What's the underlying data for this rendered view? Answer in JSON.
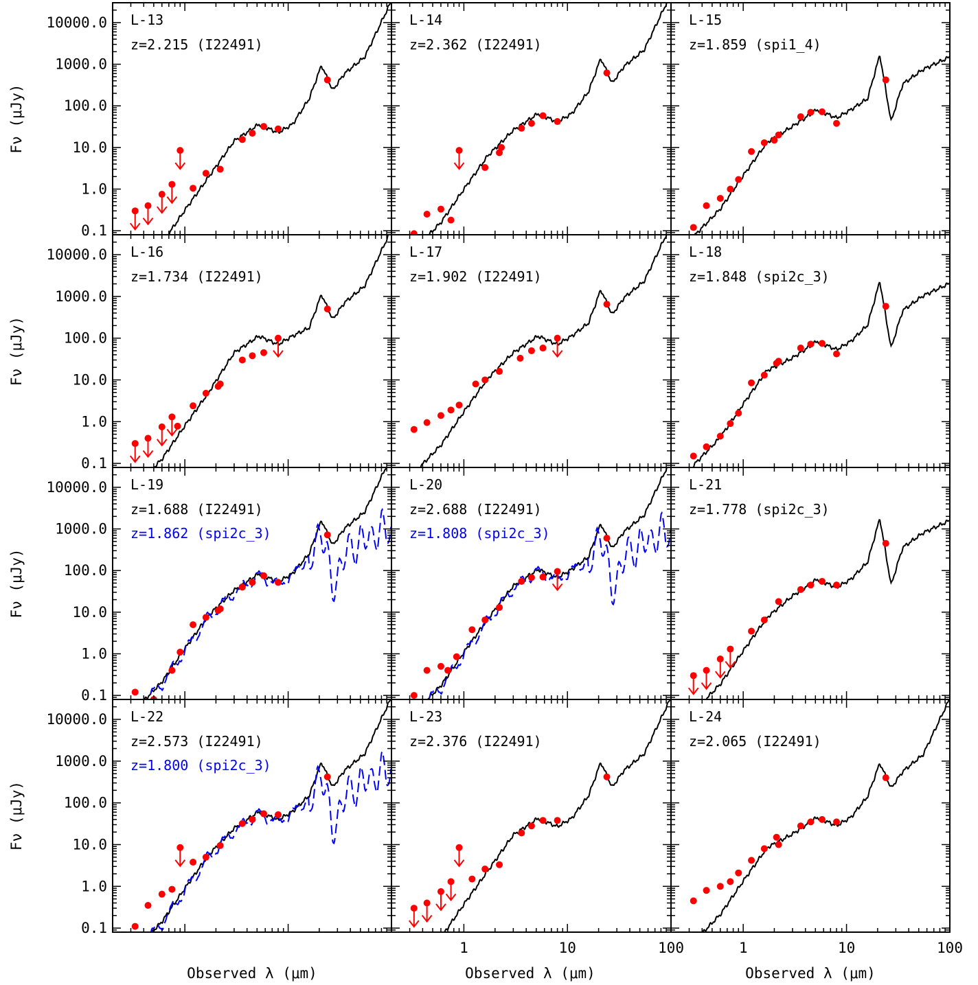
{
  "figure": {
    "ylabel": "Fν (μJy)",
    "xlabel": "Observed λ (μm)",
    "y_tick_labels": [
      "10000.0",
      "1000.0",
      "100.0",
      "10.0",
      "1.0",
      "0.1"
    ],
    "x_tick_labels": [
      "1",
      "10",
      "100"
    ],
    "colors": {
      "model_fit": "#000000",
      "alt_fit": "#0000ff",
      "photometry": "#ff0000",
      "frame": "#000000",
      "background": "#ffffff"
    }
  },
  "chart_data": [
    {
      "type": "line",
      "label": "L-13",
      "z_text": "z=2.215 (I22491)",
      "alt_z_text": "",
      "xscale": "log",
      "yscale": "log",
      "xlim": [
        0.2,
        100
      ],
      "ylim": [
        0.08,
        30000
      ],
      "points": [
        [
          0.33,
          0.3
        ],
        [
          0.44,
          0.4
        ],
        [
          0.6,
          0.75
        ],
        [
          0.75,
          1.3
        ],
        [
          0.9,
          8.5
        ],
        [
          1.2,
          1.05
        ],
        [
          1.6,
          2.4
        ],
        [
          2.2,
          3.0
        ],
        [
          3.6,
          15.5
        ],
        [
          4.5,
          22
        ],
        [
          5.8,
          32
        ],
        [
          8.0,
          28
        ],
        [
          24,
          420
        ]
      ],
      "upper_limits": [
        [
          0.33,
          0.3
        ],
        [
          0.44,
          0.4
        ],
        [
          0.6,
          0.75
        ],
        [
          0.75,
          1.3
        ],
        [
          0.9,
          8.5
        ]
      ],
      "model_template": "I22491",
      "model_z": 2.215,
      "alt_model": null
    },
    {
      "type": "line",
      "label": "L-14",
      "z_text": "z=2.362 (I22491)",
      "alt_z_text": "",
      "xscale": "log",
      "yscale": "log",
      "xlim": [
        0.2,
        100
      ],
      "ylim": [
        0.08,
        30000
      ],
      "points": [
        [
          0.33,
          0.085
        ],
        [
          0.44,
          0.25
        ],
        [
          0.6,
          0.33
        ],
        [
          0.75,
          0.18
        ],
        [
          0.9,
          8.5
        ],
        [
          1.6,
          3.3
        ],
        [
          2.2,
          7.5
        ],
        [
          2.3,
          10
        ],
        [
          3.6,
          29
        ],
        [
          4.5,
          38
        ],
        [
          5.8,
          58
        ],
        [
          8.0,
          42
        ],
        [
          24,
          620
        ]
      ],
      "upper_limits": [
        [
          0.9,
          8.5
        ]
      ],
      "model_template": "I22491",
      "model_z": 2.362,
      "alt_model": null
    },
    {
      "type": "line",
      "label": "L-15",
      "z_text": "z=1.859 (spi1_4)",
      "alt_z_text": "",
      "xscale": "log",
      "yscale": "log",
      "xlim": [
        0.2,
        100
      ],
      "ylim": [
        0.08,
        30000
      ],
      "points": [
        [
          0.33,
          0.12
        ],
        [
          0.44,
          0.4
        ],
        [
          0.6,
          0.6
        ],
        [
          0.75,
          1.0
        ],
        [
          0.9,
          1.7
        ],
        [
          1.2,
          8
        ],
        [
          1.6,
          13
        ],
        [
          2.0,
          15
        ],
        [
          2.2,
          20
        ],
        [
          3.6,
          55
        ],
        [
          4.5,
          70
        ],
        [
          5.8,
          72
        ],
        [
          8.0,
          38
        ],
        [
          24,
          420
        ]
      ],
      "upper_limits": [],
      "model_template": "spi1_4",
      "model_z": 1.859,
      "alt_model": null
    },
    {
      "type": "line",
      "label": "L-16",
      "z_text": "z=1.734 (I22491)",
      "alt_z_text": "",
      "xscale": "log",
      "yscale": "log",
      "xlim": [
        0.2,
        100
      ],
      "ylim": [
        0.08,
        30000
      ],
      "points": [
        [
          0.33,
          0.3
        ],
        [
          0.44,
          0.4
        ],
        [
          0.6,
          0.75
        ],
        [
          0.75,
          1.3
        ],
        [
          0.85,
          0.78
        ],
        [
          1.2,
          2.4
        ],
        [
          1.6,
          4.8
        ],
        [
          2.1,
          7
        ],
        [
          2.2,
          8
        ],
        [
          3.6,
          30
        ],
        [
          4.5,
          38
        ],
        [
          5.8,
          45
        ],
        [
          8.0,
          100
        ],
        [
          24,
          500
        ]
      ],
      "upper_limits": [
        [
          0.33,
          0.3
        ],
        [
          0.44,
          0.4
        ],
        [
          0.6,
          0.75
        ],
        [
          0.75,
          1.3
        ],
        [
          8.0,
          100
        ]
      ],
      "model_template": "I22491",
      "model_z": 1.734,
      "alt_model": null
    },
    {
      "type": "line",
      "label": "L-17",
      "z_text": "z=1.902 (I22491)",
      "alt_z_text": "",
      "xscale": "log",
      "yscale": "log",
      "xlim": [
        0.2,
        100
      ],
      "ylim": [
        0.08,
        30000
      ],
      "points": [
        [
          0.33,
          0.65
        ],
        [
          0.44,
          0.95
        ],
        [
          0.6,
          1.4
        ],
        [
          0.75,
          1.9
        ],
        [
          0.9,
          2.5
        ],
        [
          1.3,
          8
        ],
        [
          1.6,
          10
        ],
        [
          2.2,
          16
        ],
        [
          3.5,
          33
        ],
        [
          4.5,
          50
        ],
        [
          5.8,
          58
        ],
        [
          8.0,
          100
        ],
        [
          24,
          650
        ]
      ],
      "upper_limits": [
        [
          8.0,
          100
        ]
      ],
      "model_template": "I22491",
      "model_z": 1.902,
      "alt_model": null
    },
    {
      "type": "line",
      "label": "L-18",
      "z_text": "z=1.848 (spi2c_3)",
      "alt_z_text": "",
      "xscale": "log",
      "yscale": "log",
      "xlim": [
        0.2,
        100
      ],
      "ylim": [
        0.08,
        30000
      ],
      "points": [
        [
          0.33,
          0.15
        ],
        [
          0.44,
          0.25
        ],
        [
          0.6,
          0.45
        ],
        [
          0.75,
          0.9
        ],
        [
          0.9,
          1.6
        ],
        [
          1.2,
          8.5
        ],
        [
          1.6,
          13
        ],
        [
          2.1,
          25
        ],
        [
          2.2,
          28
        ],
        [
          3.6,
          58
        ],
        [
          4.5,
          72
        ],
        [
          5.8,
          75
        ],
        [
          8.0,
          42
        ],
        [
          24,
          580
        ]
      ],
      "upper_limits": [],
      "model_template": "spi2c_3",
      "model_z": 1.848,
      "alt_model": null
    },
    {
      "type": "line",
      "label": "L-19",
      "z_text": "z=1.688 (I22491)",
      "alt_z_text": "z=1.862 (spi2c_3)",
      "xscale": "log",
      "yscale": "log",
      "xlim": [
        0.2,
        100
      ],
      "ylim": [
        0.08,
        30000
      ],
      "points": [
        [
          0.33,
          0.12
        ],
        [
          0.5,
          0.08
        ],
        [
          0.75,
          0.4
        ],
        [
          0.9,
          1.1
        ],
        [
          1.2,
          5
        ],
        [
          1.6,
          7.5
        ],
        [
          2.1,
          11
        ],
        [
          2.2,
          12
        ],
        [
          3.6,
          40
        ],
        [
          4.5,
          52
        ],
        [
          5.8,
          75
        ],
        [
          8.0,
          52
        ],
        [
          24,
          720
        ]
      ],
      "upper_limits": [],
      "model_template": "I22491",
      "model_z": 1.688,
      "alt_model": {
        "template": "spi2c_3",
        "z": 1.862
      }
    },
    {
      "type": "line",
      "label": "L-20",
      "z_text": "z=2.688 (I22491)",
      "alt_z_text": "z=1.808 (spi2c_3)",
      "xscale": "log",
      "yscale": "log",
      "xlim": [
        0.2,
        100
      ],
      "ylim": [
        0.08,
        30000
      ],
      "points": [
        [
          0.33,
          0.1
        ],
        [
          0.44,
          0.4
        ],
        [
          0.6,
          0.5
        ],
        [
          0.7,
          0.4
        ],
        [
          0.85,
          0.85
        ],
        [
          1.2,
          3.8
        ],
        [
          1.6,
          6.5
        ],
        [
          2.2,
          13
        ],
        [
          3.6,
          55
        ],
        [
          4.5,
          68
        ],
        [
          5.8,
          70
        ],
        [
          8.0,
          95
        ],
        [
          24,
          600
        ]
      ],
      "upper_limits": [
        [
          8.0,
          95
        ]
      ],
      "model_template": "I22491",
      "model_z": 2.688,
      "alt_model": {
        "template": "spi2c_3",
        "z": 1.808
      }
    },
    {
      "type": "line",
      "label": "L-21",
      "z_text": "z=1.778 (spi2c_3)",
      "alt_z_text": "",
      "xscale": "log",
      "yscale": "log",
      "xlim": [
        0.2,
        100
      ],
      "ylim": [
        0.08,
        30000
      ],
      "points": [
        [
          0.33,
          0.3
        ],
        [
          0.44,
          0.4
        ],
        [
          0.6,
          0.75
        ],
        [
          0.75,
          1.3
        ],
        [
          1.2,
          3.5
        ],
        [
          1.6,
          6.5
        ],
        [
          2.2,
          18
        ],
        [
          3.6,
          35
        ],
        [
          4.5,
          45
        ],
        [
          5.8,
          55
        ],
        [
          8.0,
          45
        ],
        [
          24,
          450
        ]
      ],
      "upper_limits": [
        [
          0.33,
          0.3
        ],
        [
          0.44,
          0.4
        ],
        [
          0.6,
          0.75
        ],
        [
          0.75,
          1.3
        ]
      ],
      "model_template": "spi2c_3",
      "model_z": 1.778,
      "alt_model": null
    },
    {
      "type": "line",
      "label": "L-22",
      "z_text": "z=2.573 (I22491)",
      "alt_z_text": "z=1.800 (spi2c_3)",
      "xscale": "log",
      "yscale": "log",
      "xlim": [
        0.2,
        100
      ],
      "ylim": [
        0.08,
        30000
      ],
      "points": [
        [
          0.33,
          0.11
        ],
        [
          0.44,
          0.35
        ],
        [
          0.6,
          0.65
        ],
        [
          0.75,
          0.85
        ],
        [
          0.9,
          8.5
        ],
        [
          1.2,
          3.8
        ],
        [
          1.6,
          5
        ],
        [
          2.2,
          9.5
        ],
        [
          3.6,
          32
        ],
        [
          4.5,
          40
        ],
        [
          5.8,
          55
        ],
        [
          8.0,
          52
        ],
        [
          24,
          420
        ]
      ],
      "upper_limits": [
        [
          0.9,
          8.5
        ]
      ],
      "model_template": "I22491",
      "model_z": 2.573,
      "alt_model": {
        "template": "spi2c_3",
        "z": 1.8
      }
    },
    {
      "type": "line",
      "label": "L-23",
      "z_text": "z=2.376 (I22491)",
      "alt_z_text": "",
      "xscale": "log",
      "yscale": "log",
      "xlim": [
        0.2,
        100
      ],
      "ylim": [
        0.08,
        30000
      ],
      "points": [
        [
          0.33,
          0.3
        ],
        [
          0.44,
          0.4
        ],
        [
          0.6,
          0.75
        ],
        [
          0.75,
          1.3
        ],
        [
          0.9,
          8.5
        ],
        [
          1.2,
          1.5
        ],
        [
          1.6,
          2.6
        ],
        [
          2.2,
          3.3
        ],
        [
          3.6,
          19
        ],
        [
          4.5,
          28
        ],
        [
          5.8,
          38
        ],
        [
          8.0,
          38
        ],
        [
          24,
          420
        ]
      ],
      "upper_limits": [
        [
          0.33,
          0.3
        ],
        [
          0.44,
          0.4
        ],
        [
          0.6,
          0.75
        ],
        [
          0.75,
          1.3
        ],
        [
          0.9,
          8.5
        ]
      ],
      "model_template": "I22491",
      "model_z": 2.376,
      "alt_model": null
    },
    {
      "type": "line",
      "label": "L-24",
      "z_text": "z=2.065 (I22491)",
      "alt_z_text": "",
      "xscale": "log",
      "yscale": "log",
      "xlim": [
        0.2,
        100
      ],
      "ylim": [
        0.08,
        30000
      ],
      "points": [
        [
          0.33,
          0.45
        ],
        [
          0.44,
          0.8
        ],
        [
          0.6,
          1.0
        ],
        [
          0.75,
          1.3
        ],
        [
          0.9,
          2.1
        ],
        [
          1.2,
          4.2
        ],
        [
          1.6,
          8
        ],
        [
          2.1,
          15
        ],
        [
          2.2,
          10
        ],
        [
          3.6,
          28
        ],
        [
          4.5,
          35
        ],
        [
          5.8,
          40
        ],
        [
          8.0,
          35
        ],
        [
          24,
          400
        ]
      ],
      "upper_limits": [],
      "model_template": "I22491",
      "model_z": 2.065,
      "alt_model": null
    }
  ]
}
